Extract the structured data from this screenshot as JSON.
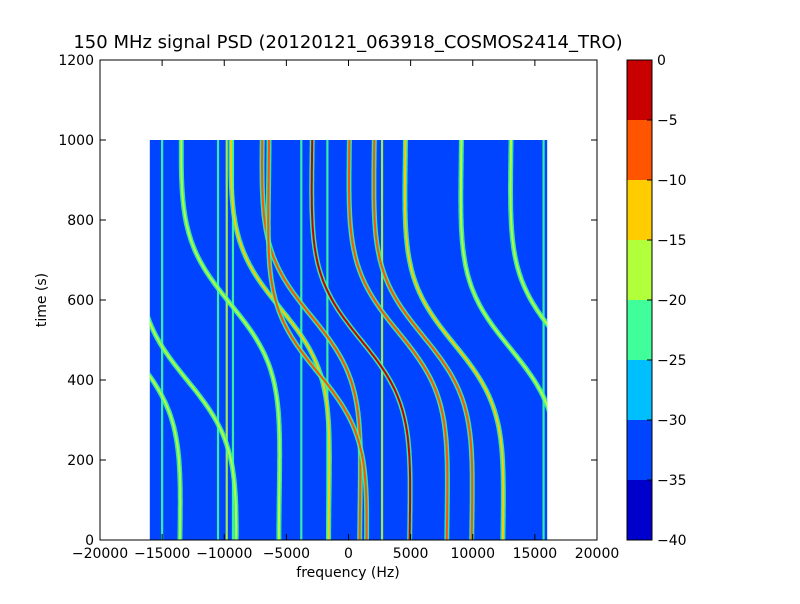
{
  "chart_data": {
    "type": "heatmap",
    "title": "150 MHz signal PSD (20120121_063918_COSMOS2414_TRO)",
    "xlabel": "frequency (Hz)",
    "ylabel": "time (s)",
    "xlim": [
      -20000,
      20000
    ],
    "ylim": [
      0,
      1200
    ],
    "x_ticks": [
      -20000,
      -15000,
      -10000,
      -5000,
      0,
      5000,
      10000,
      15000,
      20000
    ],
    "x_tick_labels": [
      "−20000",
      "−15000",
      "−10000",
      "−5000",
      "0",
      "5000",
      "10000",
      "15000",
      "20000"
    ],
    "y_ticks": [
      0,
      200,
      400,
      600,
      800,
      1000,
      1200
    ],
    "y_tick_labels": [
      "0",
      "200",
      "400",
      "600",
      "800",
      "1000",
      "1200"
    ],
    "data_extent": {
      "freq_min": -16000,
      "freq_max": 16000,
      "time_min": 0,
      "time_max": 1000
    },
    "background_level": -35,
    "grid": false,
    "colorbar": {
      "levels": [
        -40,
        -35,
        -30,
        -25,
        -20,
        -15,
        -10,
        -5,
        0
      ],
      "tick_labels": [
        "−40",
        "−35",
        "−30",
        "−25",
        "−20",
        "−15",
        "−10",
        "−5",
        "0"
      ],
      "colors": [
        "#0000cd",
        "#0044ff",
        "#00bfff",
        "#40ff9a",
        "#b2ff3c",
        "#ffcc00",
        "#ff5500",
        "#c80000"
      ]
    },
    "signal_traces": [
      {
        "center_freq": -17500,
        "center_time": 470,
        "level": -20
      },
      {
        "center_freq": -13000,
        "center_time": 400,
        "level": -20
      },
      {
        "center_freq": -9500,
        "center_time": 590,
        "level": -20
      },
      {
        "center_freq": -5500,
        "center_time": 580,
        "level": -15
      },
      {
        "center_freq": -3000,
        "center_time": 560,
        "level": -10
      },
      {
        "center_freq": -2500,
        "center_time": 420,
        "level": -10
      },
      {
        "center_freq": 1000,
        "center_time": 500,
        "level": -5
      },
      {
        "center_freq": 4000,
        "center_time": 520,
        "level": -10
      },
      {
        "center_freq": 6000,
        "center_time": 510,
        "level": -10
      },
      {
        "center_freq": 8500,
        "center_time": 490,
        "level": -15
      },
      {
        "center_freq": 13000,
        "center_time": 480,
        "level": -20
      },
      {
        "center_freq": 17000,
        "center_time": 500,
        "level": -20
      }
    ],
    "vertical_lines": [
      {
        "freq": -15000,
        "level": -25
      },
      {
        "freq": -10500,
        "level": -25
      },
      {
        "freq": -9800,
        "level": -20
      },
      {
        "freq": -9300,
        "level": -25
      },
      {
        "freq": -3800,
        "level": -25
      },
      {
        "freq": -1700,
        "level": -25
      },
      {
        "freq": 2700,
        "level": -20
      },
      {
        "freq": 15700,
        "level": -25
      }
    ]
  }
}
